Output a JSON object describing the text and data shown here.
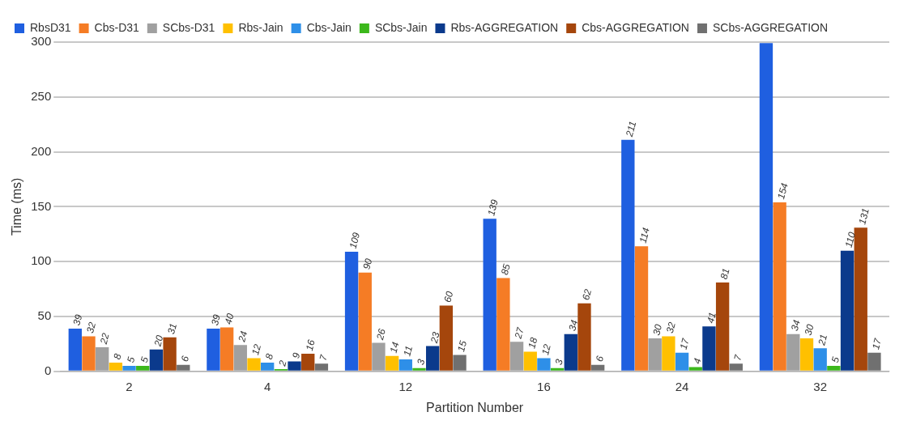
{
  "chart_data": {
    "type": "bar",
    "xlabel": "Partition Number",
    "ylabel": "Time (ms)",
    "categories": [
      "2",
      "4",
      "12",
      "16",
      "24",
      "32"
    ],
    "ylim": [
      0,
      300
    ],
    "yticks": [
      0,
      50,
      100,
      150,
      200,
      250,
      300
    ],
    "grid": "y",
    "legend": "top left",
    "series": [
      {
        "name": "RbsD31",
        "color": "#1f5fe0",
        "values": [
          39,
          39,
          109,
          139,
          211,
          299
        ],
        "value_labels": [
          "39",
          "39",
          "109",
          "139",
          "211",
          null
        ]
      },
      {
        "name": "Cbs-D31",
        "color": "#f57c25",
        "values": [
          32,
          40,
          90,
          85,
          114,
          154
        ],
        "value_labels": [
          "32",
          "40",
          "90",
          "85",
          "114",
          "154"
        ]
      },
      {
        "name": "SCbs-D31",
        "color": "#a0a0a0",
        "values": [
          22,
          24,
          26,
          27,
          30,
          34
        ],
        "value_labels": [
          "22",
          "24",
          "26",
          "27",
          "30",
          "34"
        ]
      },
      {
        "name": "Rbs-Jain",
        "color": "#ffc000",
        "values": [
          8,
          12,
          14,
          18,
          32,
          30
        ],
        "value_labels": [
          "8",
          "12",
          "14",
          "18",
          "32",
          "30"
        ]
      },
      {
        "name": "Cbs-Jain",
        "color": "#2e8fe8",
        "values": [
          5,
          8,
          11,
          12,
          17,
          21
        ],
        "value_labels": [
          "5",
          "8",
          "11",
          "12",
          "17",
          "21"
        ]
      },
      {
        "name": "SCbs-Jain",
        "color": "#3cb81c",
        "values": [
          5,
          2,
          3,
          3,
          4,
          5
        ],
        "value_labels": [
          "5",
          "2",
          "3",
          "3",
          "4",
          "5"
        ]
      },
      {
        "name": "Rbs-AGGREGATION",
        "color": "#0b3a8c",
        "values": [
          20,
          9,
          23,
          34,
          41,
          110
        ],
        "value_labels": [
          "20",
          "9",
          "23",
          "34",
          "41",
          "110"
        ]
      },
      {
        "name": "Cbs-AGGREGATION",
        "color": "#a5460c",
        "values": [
          31,
          16,
          60,
          62,
          81,
          131
        ],
        "value_labels": [
          "31",
          "16",
          "60",
          "62",
          "81",
          "131"
        ]
      },
      {
        "name": "SCbs-AGGREGATION",
        "color": "#707070",
        "values": [
          6,
          7,
          15,
          6,
          7,
          17
        ],
        "value_labels": [
          "6",
          "7",
          "15",
          "6",
          "7",
          "17"
        ]
      }
    ]
  }
}
